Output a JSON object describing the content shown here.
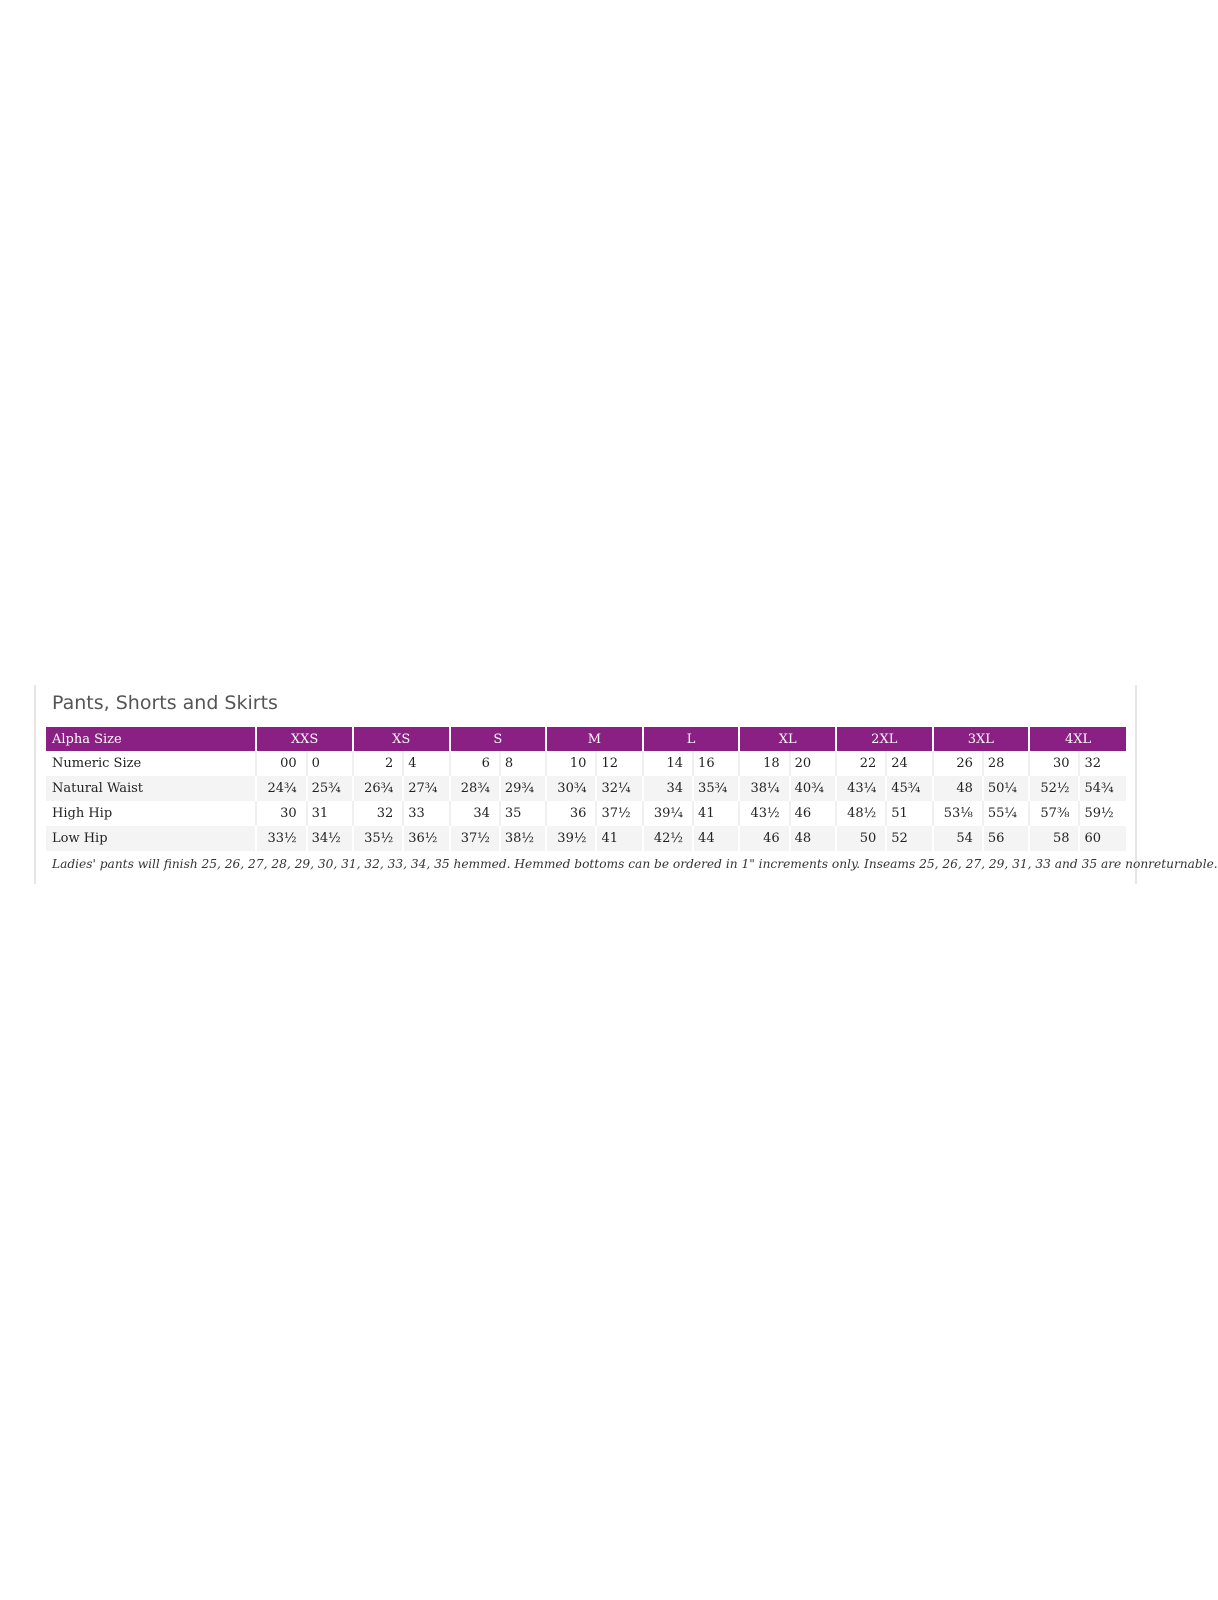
{
  "title": "Pants, Shorts and Skirts",
  "header": {
    "label": "Alpha Size",
    "sizes": [
      "XXS",
      "XS",
      "S",
      "M",
      "L",
      "XL",
      "2XL",
      "3XL",
      "4XL"
    ]
  },
  "rows": [
    {
      "label": "Numeric Size",
      "values": [
        "00",
        "0",
        "2",
        "4",
        "6",
        "8",
        "10",
        "12",
        "14",
        "16",
        "18",
        "20",
        "22",
        "24",
        "26",
        "28",
        "30",
        "32"
      ]
    },
    {
      "label": "Natural Waist",
      "values": [
        "24¾",
        "25¾",
        "26¾",
        "27¾",
        "28¾",
        "29¾",
        "30¾",
        "32¼",
        "34",
        "35¾",
        "38¼",
        "40¾",
        "43¼",
        "45¾",
        "48",
        "50¼",
        "52½",
        "54¾"
      ]
    },
    {
      "label": "High Hip",
      "values": [
        "30",
        "31",
        "32",
        "33",
        "34",
        "35",
        "36",
        "37½",
        "39¼",
        "41",
        "43½",
        "46",
        "48½",
        "51",
        "53⅛",
        "55¼",
        "57⅜",
        "59½"
      ]
    },
    {
      "label": "Low Hip",
      "values": [
        "33½",
        "34½",
        "35½",
        "36½",
        "37½",
        "38½",
        "39½",
        "41",
        "42½",
        "44",
        "46",
        "48",
        "50",
        "52",
        "54",
        "56",
        "58",
        "60"
      ]
    }
  ],
  "note": "Ladies' pants will finish 25, 26, 27, 28, 29, 30, 31, 32, 33, 34, 35 hemmed. Hemmed bottoms can be ordered in 1\" increments only. Inseams 25, 26, 27, 29, 31, 33 and 35 are nonreturnable.",
  "colors": {
    "header_bg": "#8a1f84",
    "alt_row": "#f4f4f4"
  }
}
